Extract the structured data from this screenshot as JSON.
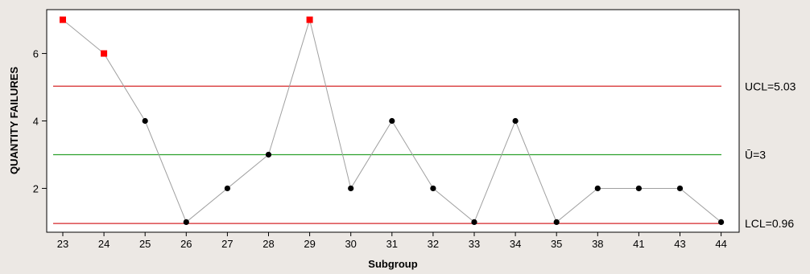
{
  "chart_data": {
    "type": "line",
    "title": "",
    "xlabel": "Subgroup",
    "ylabel": "QUANTITY FAILURES",
    "categories": [
      "23",
      "24",
      "25",
      "26",
      "27",
      "28",
      "29",
      "30",
      "31",
      "32",
      "33",
      "34",
      "35",
      "38",
      "41",
      "43",
      "44"
    ],
    "values": [
      7,
      6,
      4,
      1,
      2,
      3,
      7,
      2,
      4,
      2,
      1,
      4,
      1,
      2,
      2,
      2,
      1
    ],
    "out_of_control": [
      true,
      true,
      false,
      false,
      false,
      false,
      true,
      false,
      false,
      false,
      false,
      false,
      false,
      false,
      false,
      false,
      false
    ],
    "ylim": [
      0.7,
      7.3
    ],
    "yticks": [
      2,
      4,
      6
    ],
    "limits": [
      {
        "name": "UCL",
        "value": 5.03,
        "label": "UCL=5.03",
        "color": "#d62728"
      },
      {
        "name": "center",
        "value": 3,
        "label": "Ū=3",
        "color": "#2ca02c"
      },
      {
        "name": "LCL",
        "value": 0.96,
        "label": "LCL=0.96",
        "color": "#d62728"
      }
    ],
    "grid": false,
    "colors": {
      "line": "#a0a0a0",
      "point": "#000000",
      "out_of_control_point": "#ff0000",
      "plot_background": "#ffffff",
      "figure_background": "#ece8e4"
    }
  }
}
